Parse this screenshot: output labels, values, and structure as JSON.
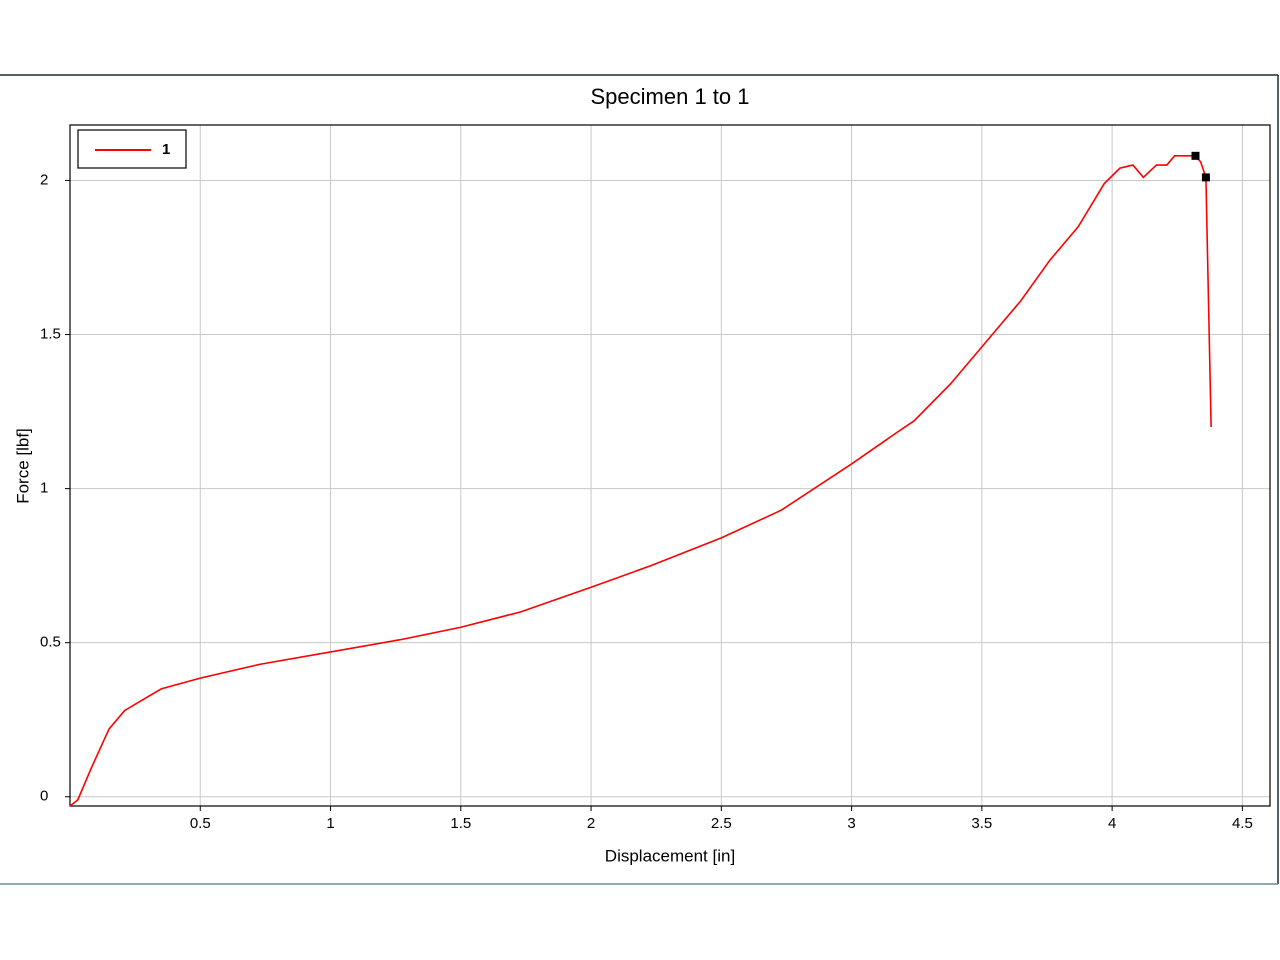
{
  "chart_data": {
    "type": "line",
    "title": "Specimen 1 to 1",
    "x_label": "Displacement [in]",
    "y_label": "Force [lbf]",
    "x": [
      0,
      0.03,
      0.08,
      0.15,
      0.21,
      0.27,
      0.35,
      0.5,
      0.73,
      1.0,
      1.27,
      1.5,
      1.73,
      2.0,
      2.23,
      2.5,
      2.73,
      3.0,
      3.17,
      3.24,
      3.38,
      3.5,
      3.65,
      3.76,
      3.87,
      3.97,
      4.03,
      4.08,
      4.12,
      4.17,
      4.21,
      4.24,
      4.32,
      4.34,
      4.36,
      4.38
    ],
    "series": [
      {
        "name": "1",
        "color": "#ff0000",
        "values": [
          -0.03,
          -0.01,
          0.09,
          0.22,
          0.28,
          0.31,
          0.35,
          0.385,
          0.43,
          0.47,
          0.51,
          0.55,
          0.6,
          0.68,
          0.75,
          0.84,
          0.93,
          1.08,
          1.18,
          1.22,
          1.34,
          1.46,
          1.61,
          1.74,
          1.85,
          1.99,
          2.04,
          2.05,
          2.01,
          2.05,
          2.05,
          2.08,
          2.08,
          2.06,
          2.01,
          1.2
        ]
      }
    ],
    "markers": {
      "x": [
        4.32,
        4.36
      ],
      "y": [
        2.08,
        2.01
      ],
      "color": "#000000"
    },
    "xlim": [
      0,
      4.606
    ],
    "ylim": [
      -0.03,
      2.18
    ],
    "xticks": [
      0.5,
      1,
      1.5,
      2,
      2.5,
      3,
      3.5,
      4,
      4.5
    ],
    "yticks": [
      0,
      0.5,
      1,
      1.5,
      2
    ],
    "grid": true,
    "legend": "upper left"
  }
}
